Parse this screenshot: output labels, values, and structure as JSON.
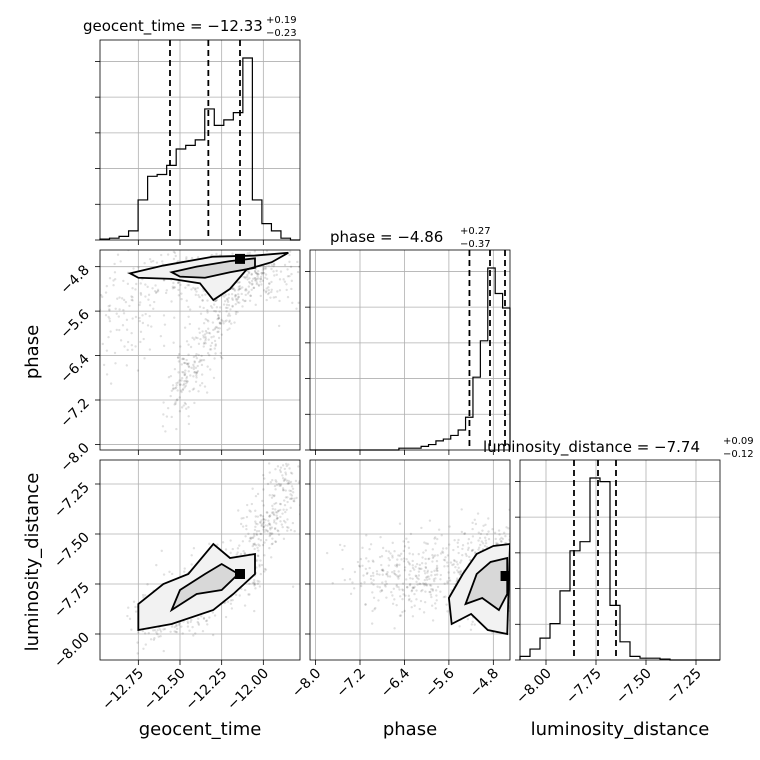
{
  "chart_data": {
    "type": "corner",
    "parameters": [
      {
        "name": "geocent_time",
        "label": "geocent_time",
        "median": -12.33,
        "plus": "+0.19",
        "minus": "−0.23",
        "title": "geocent_time = −12.33",
        "range": [
          -12.98,
          -11.78
        ],
        "ticks": [
          -12.75,
          -12.5,
          -12.25,
          -12.0
        ],
        "tick_labels": [
          "−12.75",
          "−12.50",
          "−12.25",
          "−12.00"
        ],
        "quantiles": [
          -12.56,
          -12.33,
          -12.14
        ]
      },
      {
        "name": "phase",
        "label": "phase",
        "median": -4.86,
        "plus": "+0.27",
        "minus": "−0.37",
        "title": "phase = −4.86",
        "range": [
          -8.1,
          -4.5
        ],
        "ticks": [
          -8.0,
          -7.2,
          -6.4,
          -5.6,
          -4.8
        ],
        "tick_labels": [
          "−8.0",
          "−7.2",
          "−6.4",
          "−5.6",
          "−4.8"
        ],
        "quantiles": [
          -5.23,
          -4.86,
          -4.59
        ]
      },
      {
        "name": "luminosity_distance",
        "label": "luminosity_distance",
        "median": -7.74,
        "plus": "+0.09",
        "minus": "−0.12",
        "title": "luminosity_distance = −7.74",
        "range": [
          -8.13,
          -7.13
        ],
        "ticks": [
          -8.0,
          -7.75,
          -7.5,
          -7.25
        ],
        "tick_labels": [
          "−8.00",
          "−7.75",
          "−7.50",
          "−7.25"
        ],
        "quantiles": [
          -7.86,
          -7.74,
          -7.65
        ]
      }
    ],
    "histograms": [
      {
        "param": 0,
        "counts": [
          0.5,
          1,
          2,
          5,
          22,
          35,
          36,
          41,
          50,
          52,
          55,
          72,
          63,
          66,
          70,
          100,
          22,
          9,
          5,
          1,
          0
        ]
      },
      {
        "param": 1,
        "counts": [
          0,
          0,
          0,
          0,
          0,
          0,
          0,
          0,
          0,
          0,
          0,
          0,
          1,
          1,
          1,
          2,
          3,
          5,
          6,
          8,
          11,
          18,
          40,
          60,
          100,
          86,
          78
        ]
      },
      {
        "param": 2,
        "counts": [
          2,
          6,
          12,
          20,
          38,
          60,
          65,
          100,
          98,
          30,
          10,
          2,
          1,
          1,
          0.5,
          0,
          0,
          0,
          0,
          0
        ]
      }
    ],
    "grid": true
  }
}
